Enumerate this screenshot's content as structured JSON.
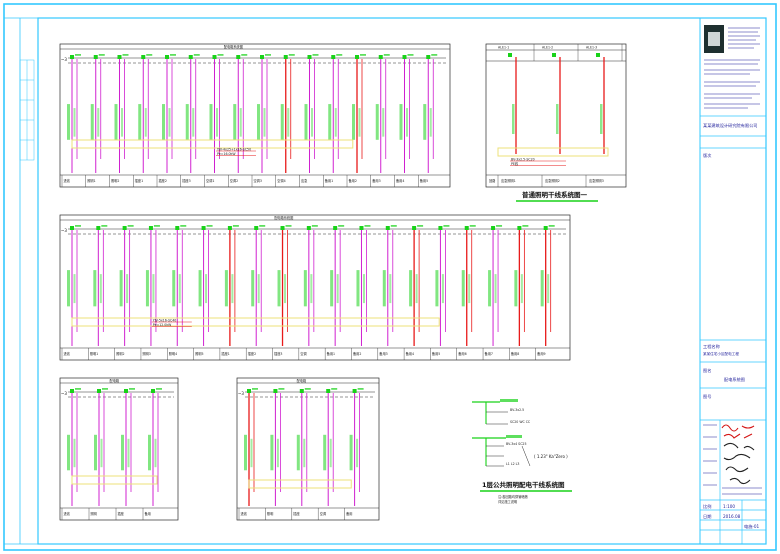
{
  "colors": {
    "frame": "#33c8ff",
    "line": "#2b2b2b",
    "magenta": "#d020d0",
    "red": "#e81a1a",
    "green": "#19d219",
    "yellow": "#ece27a",
    "blue": "#1d1d9a",
    "signature": "#d41414"
  },
  "diagram1": {
    "header": "配电箱系统图",
    "voltage": "~3",
    "note_lines": [
      "YJV-4x25+1x16-SC50",
      "Pe=16.0kW"
    ],
    "bottom_labels": [
      "进线",
      "照明1",
      "照明2",
      "插座1",
      "插座2",
      "插座3",
      "空调1",
      "空调2",
      "空调3",
      "空调4",
      "应急",
      "备用1",
      "备用2",
      "备用3",
      "备用4",
      "备用5"
    ]
  },
  "diagram2": {
    "headers": [
      "ALE1-1",
      "ALE1-2",
      "ALE1-3"
    ],
    "note_lines": [
      "BV-3x2.5-SC20",
      "PE线"
    ],
    "bottom_labels": [
      "回路",
      "应急照明1",
      "应急照明2",
      "应急照明3"
    ],
    "caption": "普通照明干线系统图一"
  },
  "diagram3": {
    "header": "配电箱系统图",
    "voltage": "~3",
    "note_lines": [
      "YJV-5x16-SC40",
      "Pe=12.0kW"
    ],
    "bottom_labels": [
      "进线",
      "照明1",
      "照明2",
      "照明3",
      "照明4",
      "照明5",
      "插座1",
      "插座2",
      "插座3",
      "空调",
      "备用1",
      "备用2",
      "备用3",
      "备用4",
      "备用5",
      "备用6",
      "备用7",
      "备用8",
      "备用9"
    ]
  },
  "diagram4": {
    "header": "配电箱",
    "voltage": "~3",
    "bottom_labels": [
      "进线",
      "照明",
      "插座",
      "备用"
    ]
  },
  "diagram5": {
    "header": "配电箱",
    "voltage": "~3",
    "bottom_labels": [
      "进线",
      "照明",
      "插座",
      "空调",
      "备用"
    ]
  },
  "legend": {
    "labels": [
      "BV-3x2.5",
      "SC20 WC CC",
      "BV-3x4 SC25",
      "L1 L2 L3"
    ],
    "formula": "( 1.23\" Ka\"Zero )",
    "caption": "1层公共照明配电干线系统图",
    "sub_lines": [
      "注:各回路均穿管暗敷",
      "详见施工说明"
    ]
  },
  "title_block": {
    "org": "某某建筑设计研究院有限公司",
    "project_label": "工程名称",
    "project": "某某住宅小区配电工程",
    "drawing_label": "图名",
    "drawing": "配电系统图",
    "sheet_label": "图号",
    "sheet": "电施-01",
    "date_label": "日期",
    "date": "2016.08",
    "scale_label": "比例",
    "scale": "1:100",
    "rev_label": "版次"
  }
}
